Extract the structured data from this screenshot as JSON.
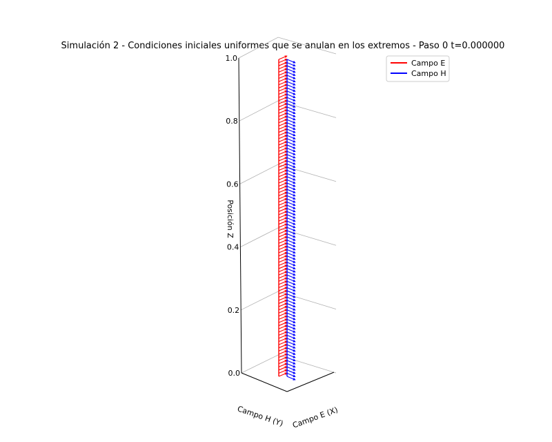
{
  "chart_data": {
    "type": "3d-quiver",
    "title": "Simulación 2 - Condiciones iniciales uniformes que se anulan en los extremos - Paso 0  t=0.000000",
    "xlabel": "Campo E (X)",
    "ylabel": "Campo H (Y)",
    "zlabel": "Posición Z",
    "zlim": [
      0,
      1
    ],
    "z_ticks": [
      "0.0",
      "0.2",
      "0.4",
      "0.6",
      "0.8",
      "1.0"
    ],
    "grid": true,
    "legend_position": "upper-right",
    "series": [
      {
        "name": "Campo E",
        "color": "#ff0000",
        "direction": "x",
        "arrow_count": 101,
        "magnitude": 1.0
      },
      {
        "name": "Campo H",
        "color": "#0000ff",
        "direction": "y",
        "arrow_count": 101,
        "magnitude": 1.0
      }
    ]
  }
}
